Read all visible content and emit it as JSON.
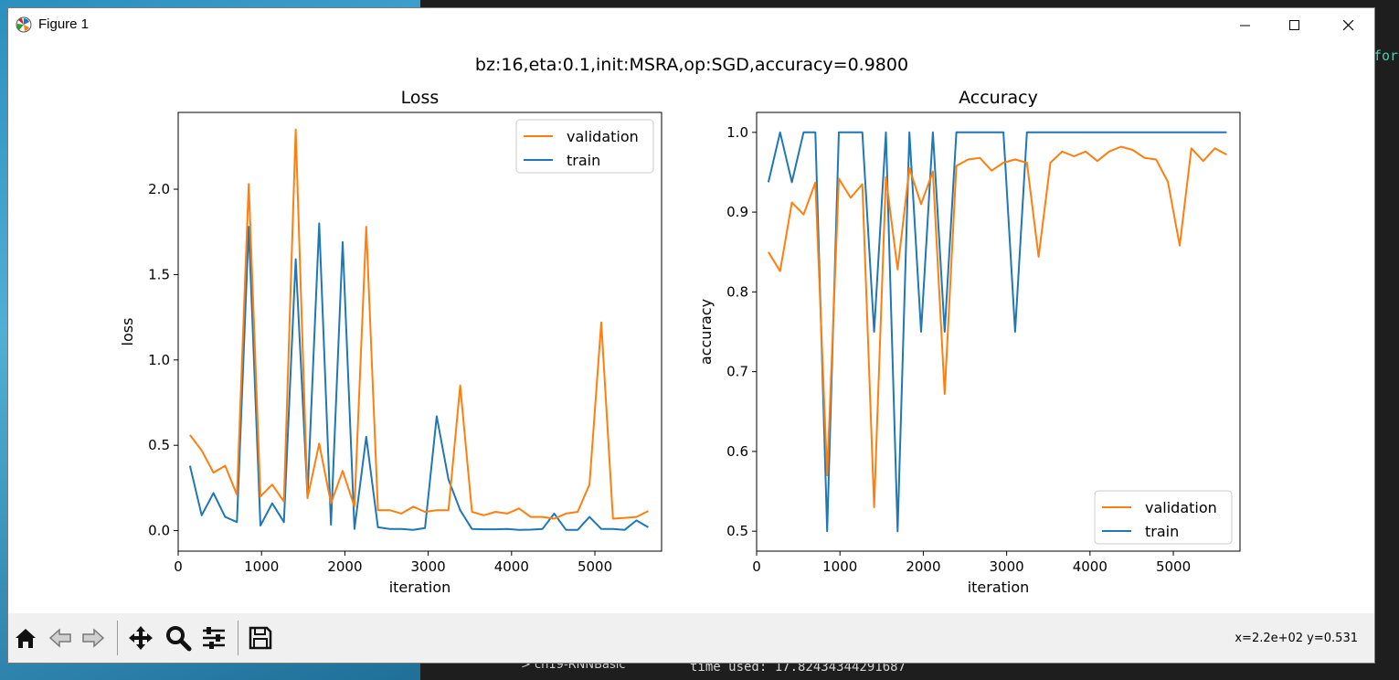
{
  "window": {
    "title": "Figure 1",
    "minimize_icon": "minimize-icon",
    "maximize_icon": "maximize-icon",
    "close_icon": "close-icon"
  },
  "figure": {
    "suptitle": "bz:16,eta:0.1,init:MSRA,op:SGD,accuracy=0.9800"
  },
  "chart_data": [
    {
      "type": "line",
      "title": "Loss",
      "xlabel": "iteration",
      "ylabel": "loss",
      "xlim": [
        0,
        5800
      ],
      "ylim": [
        -0.12,
        2.45
      ],
      "xticks": [
        0,
        1000,
        2000,
        3000,
        4000,
        5000
      ],
      "yticks": [
        0.0,
        0.5,
        1.0,
        1.5,
        2.0
      ],
      "ytick_labels": [
        "0.0",
        "0.5",
        "1.0",
        "1.5",
        "2.0"
      ],
      "legend": "top-right",
      "x": [
        141,
        282,
        423,
        564,
        705,
        846,
        987,
        1128,
        1269,
        1410,
        1551,
        1692,
        1833,
        1974,
        2115,
        2256,
        2397,
        2538,
        2679,
        2820,
        2961,
        3102,
        3243,
        3384,
        3525,
        3666,
        3807,
        3948,
        4089,
        4230,
        4371,
        4512,
        4653,
        4794,
        4935,
        5076,
        5217,
        5358,
        5499,
        5640
      ],
      "series": [
        {
          "name": "validation",
          "color": "#ff7f0e",
          "values": [
            0.56,
            0.47,
            0.34,
            0.38,
            0.21,
            2.03,
            0.2,
            0.27,
            0.17,
            2.35,
            0.19,
            0.51,
            0.16,
            0.35,
            0.14,
            1.78,
            0.12,
            0.12,
            0.1,
            0.14,
            0.11,
            0.12,
            0.12,
            0.85,
            0.11,
            0.09,
            0.11,
            0.1,
            0.13,
            0.08,
            0.08,
            0.07,
            0.1,
            0.11,
            0.27,
            1.22,
            0.07,
            0.075,
            0.08,
            0.115
          ]
        },
        {
          "name": "train",
          "color": "#1f77b4",
          "values": [
            0.38,
            0.09,
            0.22,
            0.08,
            0.05,
            1.78,
            0.03,
            0.16,
            0.05,
            1.59,
            0.2,
            1.8,
            0.035,
            1.69,
            0.01,
            0.55,
            0.02,
            0.01,
            0.01,
            0.005,
            0.015,
            0.67,
            0.3,
            0.12,
            0.01,
            0.008,
            0.008,
            0.01,
            0.005,
            0.006,
            0.01,
            0.1,
            0.005,
            0.005,
            0.08,
            0.01,
            0.01,
            0.005,
            0.06,
            0.02
          ]
        }
      ]
    },
    {
      "type": "line",
      "title": "Accuracy",
      "xlabel": "iteration",
      "ylabel": "accuracy",
      "xlim": [
        0,
        5800
      ],
      "ylim": [
        0.475,
        1.025
      ],
      "xticks": [
        0,
        1000,
        2000,
        3000,
        4000,
        5000
      ],
      "yticks": [
        0.5,
        0.6,
        0.7,
        0.8,
        0.9,
        1.0
      ],
      "ytick_labels": [
        "0.5",
        "0.6",
        "0.7",
        "0.8",
        "0.9",
        "1.0"
      ],
      "legend": "bottom-right",
      "x": [
        141,
        282,
        423,
        564,
        705,
        846,
        987,
        1128,
        1269,
        1410,
        1551,
        1692,
        1833,
        1974,
        2115,
        2256,
        2397,
        2538,
        2679,
        2820,
        2961,
        3102,
        3243,
        3384,
        3525,
        3666,
        3807,
        3948,
        4089,
        4230,
        4371,
        4512,
        4653,
        4794,
        4935,
        5076,
        5217,
        5358,
        5499,
        5640
      ],
      "series": [
        {
          "name": "validation",
          "color": "#ff7f0e",
          "values": [
            0.85,
            0.826,
            0.912,
            0.897,
            0.937,
            0.57,
            0.942,
            0.918,
            0.935,
            0.53,
            0.944,
            0.828,
            0.955,
            0.91,
            0.951,
            0.672,
            0.958,
            0.966,
            0.968,
            0.952,
            0.962,
            0.966,
            0.962,
            0.844,
            0.962,
            0.976,
            0.97,
            0.976,
            0.964,
            0.976,
            0.982,
            0.978,
            0.968,
            0.966,
            0.938,
            0.858,
            0.98,
            0.964,
            0.98,
            0.972
          ]
        },
        {
          "name": "train",
          "color": "#1f77b4",
          "values": [
            0.9375,
            1.0,
            0.9375,
            1.0,
            1.0,
            0.5,
            1.0,
            1.0,
            1.0,
            0.75,
            1.0,
            0.5,
            1.0,
            0.75,
            1.0,
            0.75,
            1.0,
            1.0,
            1.0,
            1.0,
            1.0,
            0.75,
            1.0,
            1.0,
            1.0,
            1.0,
            1.0,
            1.0,
            1.0,
            1.0,
            1.0,
            1.0,
            1.0,
            1.0,
            1.0,
            1.0,
            1.0,
            1.0,
            1.0,
            1.0
          ]
        }
      ]
    }
  ],
  "toolbar": {
    "buttons": [
      {
        "name": "home-button",
        "icon": "home-icon"
      },
      {
        "name": "back-button",
        "icon": "arrow-left-icon"
      },
      {
        "name": "forward-button",
        "icon": "arrow-right-icon"
      },
      {
        "name": "pan-button",
        "icon": "move-icon"
      },
      {
        "name": "zoom-button",
        "icon": "magnifier-icon"
      },
      {
        "name": "configure-subplots-button",
        "icon": "sliders-icon"
      },
      {
        "name": "save-button",
        "icon": "floppy-disk-icon"
      }
    ],
    "coords": "x=2.2e+02 y=0.531"
  },
  "background": {
    "terminal_text": "time used: 17.82434344291687",
    "tree_item": "> ch19-RNNBasic",
    "code_fragment": "for"
  }
}
